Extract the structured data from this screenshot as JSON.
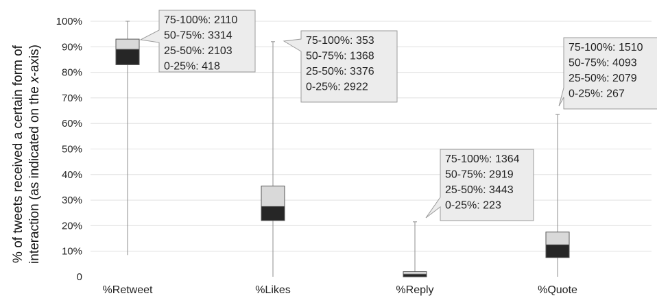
{
  "chart_data": {
    "type": "boxplot",
    "ylabel_line1": "% of tweets received a certain form of",
    "ylabel_line2_prefix": "interaction (as indicated on the ",
    "ylabel_line2_italic": "x",
    "ylabel_line2_suffix": "-axis)",
    "yticks": [
      "100%",
      "90%",
      "80%",
      "70%",
      "60%",
      "50%",
      "40%",
      "30%",
      "20%",
      "10%",
      "0"
    ],
    "ylim": [
      0,
      100
    ],
    "grid": true,
    "categories": [
      "%Retweet",
      "%Likes",
      "%Reply",
      "%Quote"
    ],
    "boxes": [
      {
        "min": 8.5,
        "q1": 83,
        "median": 89,
        "q3": 93,
        "max": 100,
        "callout": [
          "75-100%: 2110",
          "50-75%: 3314",
          "25-50%: 2103",
          "0-25%: 418"
        ]
      },
      {
        "min": 0,
        "q1": 22,
        "median": 27.5,
        "q3": 35.5,
        "max": 92,
        "callout": [
          "75-100%: 353",
          "50-75%: 1368",
          "25-50%: 3376",
          "0-25%: 2922"
        ]
      },
      {
        "min": 0,
        "q1": 0,
        "median": 1,
        "q3": 2,
        "max": 21.5,
        "callout": [
          "75-100%: 1364",
          "50-75%: 2919",
          "25-50%: 3443",
          "0-25%: 223"
        ]
      },
      {
        "min": 0,
        "q1": 7.5,
        "median": 12.5,
        "q3": 17.5,
        "max": 63.5,
        "callout": [
          "75-100%: 1510",
          "50-75%: 4093",
          "25-50%: 2079",
          "0-25%: 267"
        ]
      }
    ],
    "colors": {
      "upper_box": "#d9d9d9",
      "lower_box": "#262626",
      "whisker": "#8c8c8c",
      "grid": "#e0e0e0",
      "callout_fill": "#ececec",
      "callout_stroke": "#9a9a9a"
    }
  }
}
